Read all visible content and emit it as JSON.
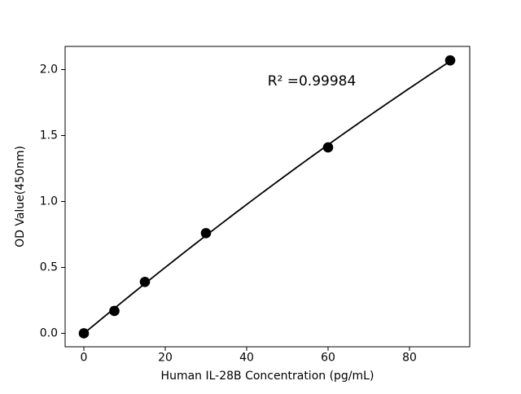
{
  "chart_data": {
    "type": "scatter",
    "title": "",
    "xlabel": "Human IL-28B Concentration (pg/mL)",
    "ylabel": "OD Value(450nm)",
    "x": [
      0,
      7.5,
      15,
      30,
      60,
      90
    ],
    "y": [
      0.0,
      0.17,
      0.39,
      0.76,
      1.41,
      2.07
    ],
    "fit": "quadratic",
    "annotation": {
      "text": "R² =0.99984",
      "x": 56,
      "y": 1.91
    },
    "x_tick_values": [
      0,
      20,
      40,
      60,
      80
    ],
    "x_tick_labels": [
      "0",
      "20",
      "40",
      "60",
      "80"
    ],
    "y_tick_values": [
      0.0,
      0.5,
      1.0,
      1.5,
      2.0
    ],
    "y_tick_labels": [
      "0.0",
      "0.5",
      "1.0",
      "1.5",
      "2.0"
    ],
    "xlim": [
      -4.6,
      94.8
    ],
    "ylim": [
      -0.102,
      2.176
    ],
    "grid": false,
    "legend": null,
    "colors": {
      "line": "#000000",
      "marker": "#000000",
      "axis": "#000000",
      "text": "#000000",
      "background": "#ffffff"
    }
  }
}
